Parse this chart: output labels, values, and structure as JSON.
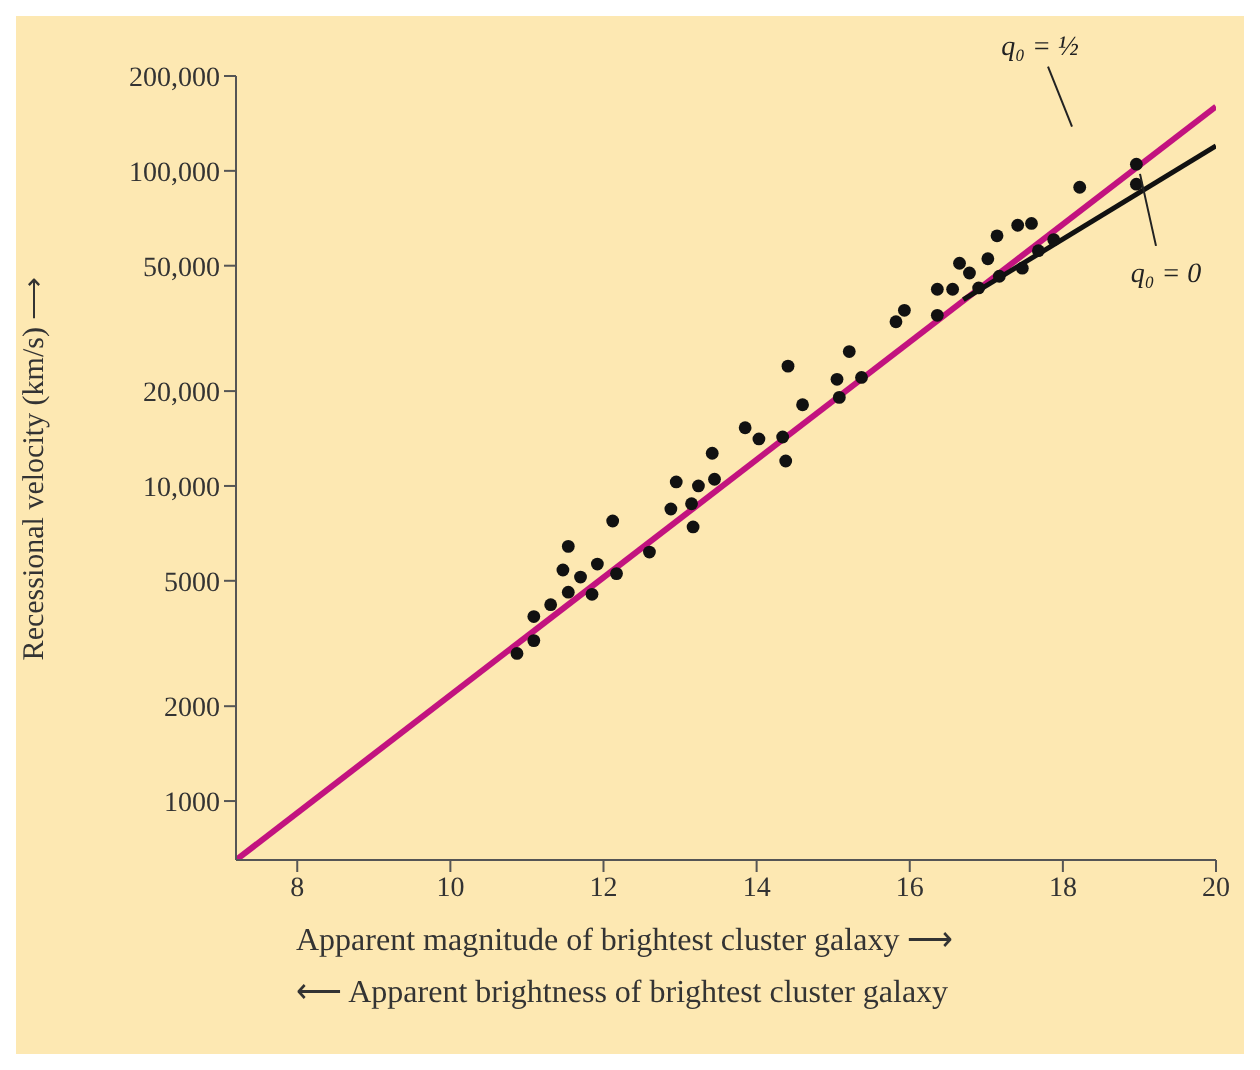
{
  "chart_data": {
    "type": "scatter",
    "xlabel": "Apparent magnitude of brightest cluster galaxy ⟶",
    "ylabel": "Recessional velocity (km/s) ⟶",
    "annotations": [
      "⟵ Apparent brightness of brightest cluster galaxy"
    ],
    "xlim": [
      7.2,
      20
    ],
    "xticks": [
      8,
      10,
      12,
      14,
      16,
      18,
      20
    ],
    "ylim": [
      650,
      200000
    ],
    "yticks": [
      1000,
      2000,
      5000,
      {
        "value": 10000,
        "label": "10,000"
      },
      {
        "value": 20000,
        "label": "20,000"
      },
      {
        "value": 50000,
        "label": "50,000"
      },
      {
        "value": 100000,
        "label": "100,000"
      },
      {
        "value": 200000,
        "label": "200,000"
      }
    ],
    "log": "y",
    "series": [
      {
        "marker": "circle",
        "color": "#111111",
        "x": [
          10.87,
          11.09,
          11.09,
          11.31,
          11.54,
          11.47,
          11.54,
          11.7,
          11.85,
          11.92,
          12.12,
          12.17,
          12.6,
          12.88,
          12.95,
          13.15,
          13.17,
          13.24,
          13.42,
          13.45,
          13.85,
          14.03,
          14.34,
          14.38,
          14.41,
          14.6,
          15.05,
          15.08,
          15.21,
          15.37,
          15.82,
          15.93,
          16.36,
          16.36,
          16.56,
          16.65,
          16.78,
          16.9,
          17.02,
          17.14,
          17.17,
          17.41,
          17.47,
          17.59,
          17.68,
          17.88,
          18.22,
          18.96,
          18.96
        ],
        "values": [
          2940,
          3230,
          3850,
          4200,
          6430,
          5410,
          4600,
          5140,
          4530,
          5650,
          7740,
          5270,
          6170,
          8450,
          10300,
          8780,
          7410,
          10000,
          12700,
          10500,
          15300,
          14100,
          14300,
          12000,
          24000,
          18100,
          21800,
          19100,
          26700,
          22100,
          33200,
          36100,
          42100,
          34800,
          42100,
          50900,
          47400,
          42500,
          52600,
          62200,
          46300,
          67200,
          49100,
          68100,
          55800,
          60500,
          88700,
          105000,
          90700
        ]
      },
      {
        "type": "line",
        "name": "q₀ = ½",
        "color": "#c2137f",
        "x": [
          7.2,
          20
        ],
        "values": [
          650,
          160000
        ]
      },
      {
        "type": "line",
        "name": "q₀ = 0",
        "color": "#111111",
        "x": [
          16.7,
          20
        ],
        "values": [
          39000,
          120000
        ]
      }
    ]
  }
}
